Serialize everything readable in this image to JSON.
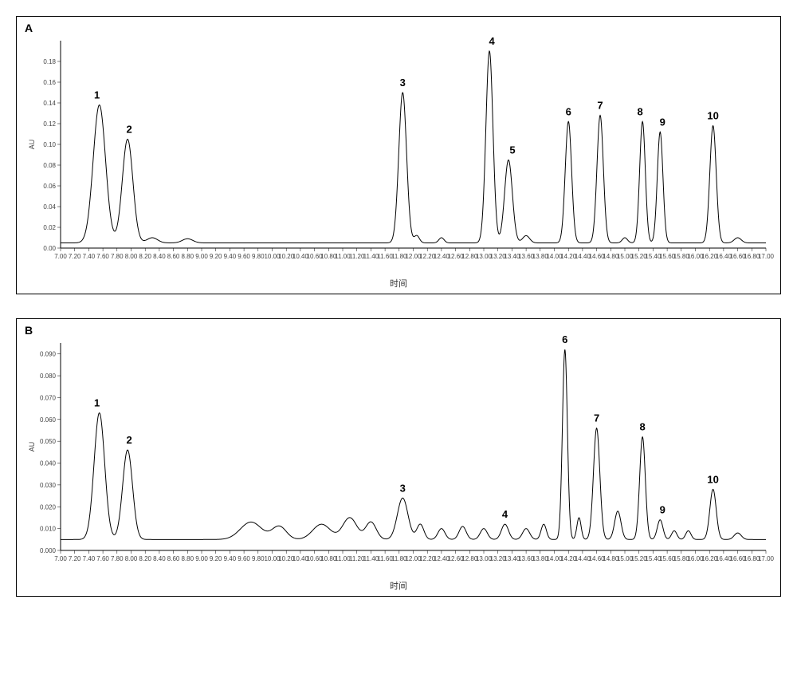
{
  "global": {
    "background_color": "#ffffff",
    "line_color": "#000000",
    "axis_color": "#000000",
    "tick_color": "#444444",
    "x_axis_title": "时间",
    "y_axis_unit": "AU",
    "line_width": 1
  },
  "panelA": {
    "label": "A",
    "xlim": [
      7.0,
      17.0
    ],
    "xtick_step": 0.2,
    "ylim": [
      0.0,
      0.2
    ],
    "ytick_step": 0.02,
    "yticks": [
      "0.00",
      "0.02",
      "0.04",
      "0.06",
      "0.08",
      "0.10",
      "0.12",
      "0.14",
      "0.16",
      "0.18"
    ],
    "baseline": 0.005,
    "peaks": [
      {
        "id": "1",
        "rt": 7.55,
        "height": 0.138,
        "width": 0.35
      },
      {
        "id": "2",
        "rt": 7.95,
        "height": 0.105,
        "width": 0.3
      },
      {
        "id": "3",
        "rt": 11.85,
        "height": 0.15,
        "width": 0.22
      },
      {
        "id": "4",
        "rt": 13.08,
        "height": 0.19,
        "width": 0.2
      },
      {
        "id": "5",
        "rt": 13.35,
        "height": 0.085,
        "width": 0.22
      },
      {
        "id": "6",
        "rt": 14.2,
        "height": 0.122,
        "width": 0.18
      },
      {
        "id": "7",
        "rt": 14.65,
        "height": 0.128,
        "width": 0.18
      },
      {
        "id": "8",
        "rt": 15.25,
        "height": 0.122,
        "width": 0.16
      },
      {
        "id": "9",
        "rt": 15.5,
        "height": 0.112,
        "width": 0.16
      },
      {
        "id": "10",
        "rt": 16.25,
        "height": 0.118,
        "width": 0.18
      }
    ],
    "bumps": [
      {
        "rt": 8.3,
        "height": 0.01,
        "width": 0.3
      },
      {
        "rt": 8.8,
        "height": 0.009,
        "width": 0.3
      },
      {
        "rt": 12.05,
        "height": 0.012,
        "width": 0.15
      },
      {
        "rt": 12.4,
        "height": 0.01,
        "width": 0.15
      },
      {
        "rt": 13.6,
        "height": 0.012,
        "width": 0.2
      },
      {
        "rt": 15.0,
        "height": 0.01,
        "width": 0.15
      },
      {
        "rt": 16.6,
        "height": 0.01,
        "width": 0.2
      }
    ],
    "label_offsets": {
      "1": [
        -3,
        -8
      ],
      "2": [
        2,
        -8
      ],
      "3": [
        0,
        -8
      ],
      "4": [
        3,
        -8
      ],
      "5": [
        5,
        -8
      ],
      "6": [
        0,
        -8
      ],
      "7": [
        0,
        -8
      ],
      "8": [
        -3,
        -8
      ],
      "9": [
        3,
        -8
      ],
      "10": [
        0,
        -8
      ]
    }
  },
  "panelB": {
    "label": "B",
    "xlim": [
      7.0,
      17.0
    ],
    "xtick_step": 0.2,
    "ylim": [
      0.0,
      0.095
    ],
    "ytick_step": 0.01,
    "yticks": [
      "0.000",
      "0.010",
      "0.020",
      "0.030",
      "0.040",
      "0.050",
      "0.060",
      "0.070",
      "0.080",
      "0.090"
    ],
    "baseline": 0.005,
    "peaks": [
      {
        "id": "1",
        "rt": 7.55,
        "height": 0.063,
        "width": 0.3
      },
      {
        "id": "2",
        "rt": 7.95,
        "height": 0.046,
        "width": 0.28
      },
      {
        "id": "3",
        "rt": 11.85,
        "height": 0.024,
        "width": 0.3
      },
      {
        "id": "4",
        "rt": 13.3,
        "height": 0.012,
        "width": 0.2
      },
      {
        "id": "6",
        "rt": 14.15,
        "height": 0.092,
        "width": 0.14
      },
      {
        "id": "7",
        "rt": 14.6,
        "height": 0.056,
        "width": 0.18
      },
      {
        "id": "8",
        "rt": 15.25,
        "height": 0.052,
        "width": 0.16
      },
      {
        "id": "9",
        "rt": 15.5,
        "height": 0.014,
        "width": 0.16
      },
      {
        "id": "10",
        "rt": 16.25,
        "height": 0.028,
        "width": 0.18
      }
    ],
    "bumps": [
      {
        "rt": 9.7,
        "height": 0.013,
        "width": 0.6
      },
      {
        "rt": 10.1,
        "height": 0.011,
        "width": 0.4
      },
      {
        "rt": 10.7,
        "height": 0.012,
        "width": 0.5
      },
      {
        "rt": 11.1,
        "height": 0.015,
        "width": 0.4
      },
      {
        "rt": 11.4,
        "height": 0.013,
        "width": 0.3
      },
      {
        "rt": 12.1,
        "height": 0.012,
        "width": 0.2
      },
      {
        "rt": 12.4,
        "height": 0.01,
        "width": 0.2
      },
      {
        "rt": 12.7,
        "height": 0.011,
        "width": 0.2
      },
      {
        "rt": 13.0,
        "height": 0.01,
        "width": 0.2
      },
      {
        "rt": 13.6,
        "height": 0.01,
        "width": 0.2
      },
      {
        "rt": 13.85,
        "height": 0.012,
        "width": 0.15
      },
      {
        "rt": 14.35,
        "height": 0.015,
        "width": 0.12
      },
      {
        "rt": 14.9,
        "height": 0.018,
        "width": 0.18
      },
      {
        "rt": 15.7,
        "height": 0.009,
        "width": 0.15
      },
      {
        "rt": 15.9,
        "height": 0.009,
        "width": 0.15
      },
      {
        "rt": 16.6,
        "height": 0.008,
        "width": 0.2
      }
    ],
    "label_offsets": {
      "1": [
        -3,
        -8
      ],
      "2": [
        2,
        -8
      ],
      "3": [
        0,
        -8
      ],
      "4": [
        0,
        -8
      ],
      "6": [
        0,
        -8
      ],
      "7": [
        0,
        -8
      ],
      "8": [
        0,
        -8
      ],
      "9": [
        3,
        -8
      ],
      "10": [
        0,
        -8
      ]
    }
  }
}
